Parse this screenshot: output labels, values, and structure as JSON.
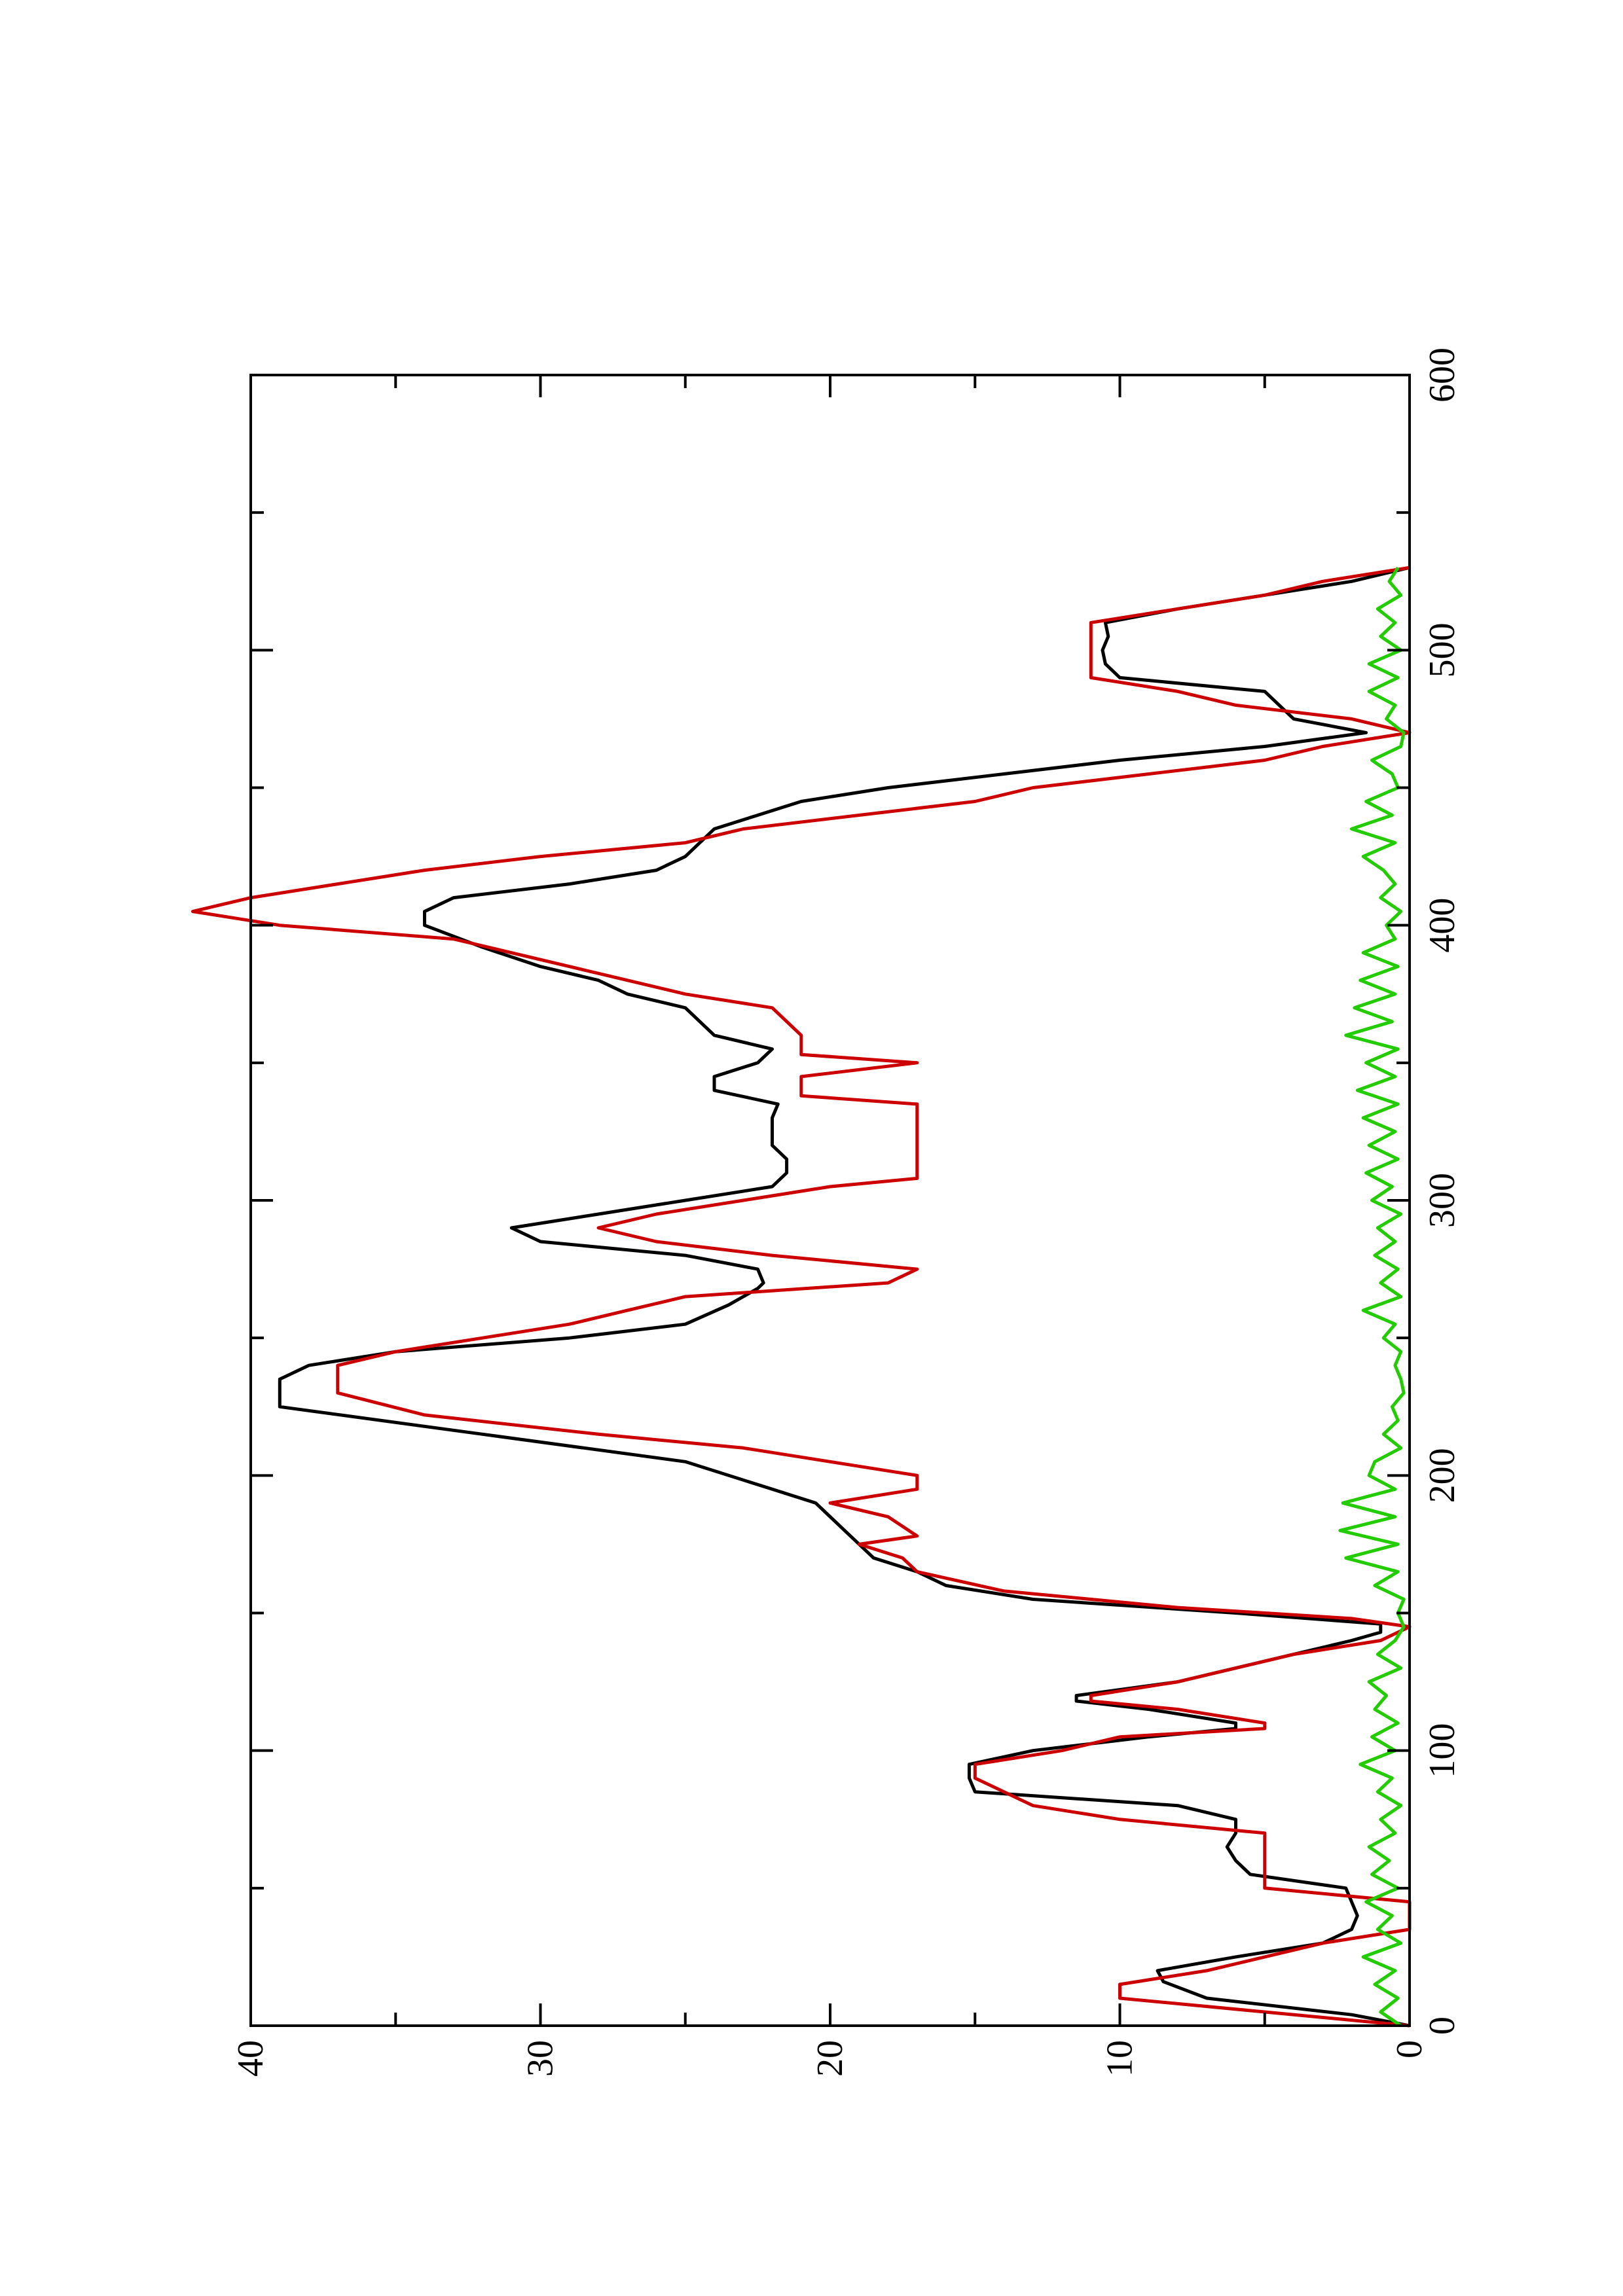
{
  "chart_data": {
    "type": "line",
    "orientation": "rotated-90",
    "title": "",
    "xlabel": "",
    "ylabel": "",
    "xlim": [
      0,
      600
    ],
    "ylim": [
      0,
      40
    ],
    "x_ticks": [
      "0",
      "100",
      "200",
      "300",
      "400",
      "500",
      "600"
    ],
    "y_ticks": [
      "0",
      "10",
      "20",
      "30",
      "40"
    ],
    "grid": false,
    "legend": "none",
    "series": [
      {
        "color": "#000000",
        "points": [
          [
            0,
            0
          ],
          [
            4,
            2
          ],
          [
            10,
            7
          ],
          [
            16,
            8.5
          ],
          [
            20,
            8.7
          ],
          [
            25,
            6
          ],
          [
            30,
            3
          ],
          [
            35,
            2
          ],
          [
            40,
            1.8
          ],
          [
            45,
            2
          ],
          [
            50,
            2.2
          ],
          [
            55,
            5.5
          ],
          [
            60,
            6
          ],
          [
            65,
            6.3
          ],
          [
            70,
            6
          ],
          [
            75,
            6
          ],
          [
            80,
            8
          ],
          [
            85,
            15
          ],
          [
            90,
            15.2
          ],
          [
            95,
            15.2
          ],
          [
            100,
            13
          ],
          [
            105,
            9
          ],
          [
            108,
            6
          ],
          [
            110,
            6
          ],
          [
            115,
            9
          ],
          [
            118,
            11.5
          ],
          [
            120,
            11.5
          ],
          [
            125,
            8
          ],
          [
            130,
            6
          ],
          [
            135,
            4
          ],
          [
            140,
            2
          ],
          [
            143,
            1
          ],
          [
            146,
            1
          ],
          [
            150,
            6
          ],
          [
            155,
            13
          ],
          [
            160,
            16
          ],
          [
            165,
            17
          ],
          [
            170,
            18.5
          ],
          [
            175,
            19
          ],
          [
            180,
            19.5
          ],
          [
            190,
            20.5
          ],
          [
            195,
            22
          ],
          [
            205,
            25
          ],
          [
            215,
            32
          ],
          [
            225,
            39
          ],
          [
            235,
            39
          ],
          [
            240,
            38
          ],
          [
            245,
            35
          ],
          [
            250,
            29
          ],
          [
            255,
            25
          ],
          [
            262,
            23.5
          ],
          [
            268,
            22.5
          ],
          [
            270,
            22.3
          ],
          [
            275,
            22.5
          ],
          [
            280,
            25
          ],
          [
            285,
            30
          ],
          [
            290,
            31
          ],
          [
            295,
            28
          ],
          [
            300,
            25
          ],
          [
            305,
            22
          ],
          [
            310,
            21.5
          ],
          [
            315,
            21.5
          ],
          [
            320,
            22
          ],
          [
            325,
            22
          ],
          [
            330,
            22
          ],
          [
            335,
            21.8
          ],
          [
            340,
            24
          ],
          [
            345,
            24
          ],
          [
            350,
            22.5
          ],
          [
            355,
            22
          ],
          [
            360,
            24
          ],
          [
            370,
            25
          ],
          [
            375,
            27
          ],
          [
            380,
            28
          ],
          [
            385,
            30
          ],
          [
            392,
            32
          ],
          [
            400,
            34
          ],
          [
            405,
            34
          ],
          [
            410,
            33
          ],
          [
            415,
            29
          ],
          [
            420,
            26
          ],
          [
            425,
            25
          ],
          [
            430,
            24.5
          ],
          [
            435,
            24
          ],
          [
            440,
            22.5
          ],
          [
            445,
            21
          ],
          [
            450,
            18
          ],
          [
            455,
            14
          ],
          [
            460,
            10
          ],
          [
            465,
            5
          ],
          [
            470,
            1.5
          ],
          [
            475,
            4
          ],
          [
            480,
            4.5
          ],
          [
            485,
            5
          ],
          [
            490,
            10
          ],
          [
            495,
            10.5
          ],
          [
            500,
            10.6
          ],
          [
            505,
            10.4
          ],
          [
            510,
            10.5
          ],
          [
            515,
            8
          ],
          [
            520,
            5
          ],
          [
            525,
            2
          ],
          [
            530,
            0
          ]
        ]
      },
      {
        "color": "#cc0000",
        "points": [
          [
            0,
            0
          ],
          [
            5,
            5
          ],
          [
            10,
            10
          ],
          [
            15,
            10
          ],
          [
            20,
            7
          ],
          [
            25,
            5
          ],
          [
            30,
            3
          ],
          [
            35,
            0
          ],
          [
            40,
            0
          ],
          [
            45,
            0
          ],
          [
            50,
            5
          ],
          [
            60,
            5
          ],
          [
            70,
            5
          ],
          [
            75,
            10
          ],
          [
            80,
            13
          ],
          [
            85,
            14
          ],
          [
            90,
            15
          ],
          [
            95,
            15
          ],
          [
            100,
            12
          ],
          [
            105,
            10
          ],
          [
            108,
            5
          ],
          [
            110,
            5
          ],
          [
            115,
            8
          ],
          [
            118,
            11
          ],
          [
            120,
            11
          ],
          [
            125,
            8
          ],
          [
            130,
            6
          ],
          [
            135,
            4
          ],
          [
            140,
            1
          ],
          [
            145,
            0
          ],
          [
            148,
            2
          ],
          [
            152,
            8
          ],
          [
            158,
            14
          ],
          [
            165,
            17
          ],
          [
            170,
            17.5
          ],
          [
            175,
            19
          ],
          [
            178,
            17
          ],
          [
            185,
            18
          ],
          [
            190,
            20
          ],
          [
            195,
            17
          ],
          [
            200,
            17
          ],
          [
            205,
            20
          ],
          [
            210,
            23
          ],
          [
            215,
            28
          ],
          [
            222,
            34
          ],
          [
            230,
            37
          ],
          [
            240,
            37
          ],
          [
            245,
            35
          ],
          [
            250,
            32
          ],
          [
            255,
            29
          ],
          [
            260,
            27
          ],
          [
            265,
            25
          ],
          [
            270,
            18
          ],
          [
            275,
            17
          ],
          [
            280,
            22
          ],
          [
            285,
            26
          ],
          [
            290,
            28
          ],
          [
            295,
            26
          ],
          [
            300,
            23
          ],
          [
            305,
            20
          ],
          [
            308,
            17
          ],
          [
            315,
            17
          ],
          [
            325,
            17
          ],
          [
            335,
            17
          ],
          [
            338,
            21
          ],
          [
            345,
            21
          ],
          [
            350,
            17
          ],
          [
            353,
            21
          ],
          [
            360,
            21
          ],
          [
            370,
            22
          ],
          [
            375,
            25
          ],
          [
            385,
            29
          ],
          [
            395,
            33
          ],
          [
            400,
            39
          ],
          [
            405,
            42
          ],
          [
            410,
            40
          ],
          [
            415,
            37
          ],
          [
            420,
            34
          ],
          [
            425,
            30
          ],
          [
            430,
            25
          ],
          [
            435,
            23
          ],
          [
            440,
            19
          ],
          [
            445,
            15
          ],
          [
            450,
            13
          ],
          [
            455,
            9
          ],
          [
            460,
            5
          ],
          [
            465,
            3
          ],
          [
            470,
            0
          ],
          [
            475,
            2
          ],
          [
            480,
            6
          ],
          [
            485,
            8
          ],
          [
            490,
            11
          ],
          [
            500,
            11
          ],
          [
            510,
            11
          ],
          [
            515,
            8
          ],
          [
            520,
            5
          ],
          [
            525,
            3
          ],
          [
            530,
            0
          ]
        ]
      },
      {
        "color": "#22cc00",
        "points": [
          [
            0,
            0.3
          ],
          [
            5,
            1
          ],
          [
            10,
            0.4
          ],
          [
            15,
            1.2
          ],
          [
            20,
            0.5
          ],
          [
            25,
            1.6
          ],
          [
            30,
            0.3
          ],
          [
            35,
            1.1
          ],
          [
            40,
            0.6
          ],
          [
            45,
            1.5
          ],
          [
            50,
            0.4
          ],
          [
            55,
            1.3
          ],
          [
            60,
            0.7
          ],
          [
            65,
            1.4
          ],
          [
            70,
            0.5
          ],
          [
            75,
            1
          ],
          [
            80,
            0.3
          ],
          [
            85,
            1.1
          ],
          [
            90,
            0.6
          ],
          [
            95,
            1.7
          ],
          [
            100,
            0.5
          ],
          [
            105,
            1.3
          ],
          [
            110,
            0.4
          ],
          [
            115,
            1.2
          ],
          [
            120,
            0.8
          ],
          [
            125,
            1.4
          ],
          [
            130,
            0.3
          ],
          [
            135,
            1.1
          ],
          [
            140,
            0.5
          ],
          [
            145,
            0.2
          ],
          [
            150,
            0.4
          ],
          [
            155,
            0.2
          ],
          [
            160,
            1.2
          ],
          [
            165,
            0.4
          ],
          [
            170,
            2.2
          ],
          [
            175,
            0.4
          ],
          [
            180,
            2.4
          ],
          [
            185,
            0.5
          ],
          [
            190,
            2.3
          ],
          [
            195,
            0.5
          ],
          [
            200,
            1.4
          ],
          [
            205,
            1.2
          ],
          [
            210,
            0.3
          ],
          [
            215,
            0.9
          ],
          [
            220,
            0.4
          ],
          [
            225,
            0.6
          ],
          [
            230,
            0.2
          ],
          [
            235,
            0.3
          ],
          [
            240,
            0.5
          ],
          [
            245,
            0.3
          ],
          [
            250,
            0.9
          ],
          [
            255,
            0.5
          ],
          [
            260,
            1.6
          ],
          [
            265,
            0.3
          ],
          [
            270,
            1
          ],
          [
            275,
            0.4
          ],
          [
            280,
            1.2
          ],
          [
            285,
            0.5
          ],
          [
            290,
            1.1
          ],
          [
            295,
            0.3
          ],
          [
            300,
            1.3
          ],
          [
            305,
            0.6
          ],
          [
            310,
            1.5
          ],
          [
            315,
            0.4
          ],
          [
            320,
            1.4
          ],
          [
            325,
            0.5
          ],
          [
            330,
            1.6
          ],
          [
            335,
            0.4
          ],
          [
            340,
            1.8
          ],
          [
            345,
            0.5
          ],
          [
            350,
            1.5
          ],
          [
            355,
            0.4
          ],
          [
            360,
            2.2
          ],
          [
            365,
            0.6
          ],
          [
            370,
            1.9
          ],
          [
            375,
            0.5
          ],
          [
            380,
            1.7
          ],
          [
            385,
            0.4
          ],
          [
            390,
            1.6
          ],
          [
            395,
            0.5
          ],
          [
            400,
            0.8
          ],
          [
            405,
            0.3
          ],
          [
            410,
            1
          ],
          [
            415,
            0.5
          ],
          [
            420,
            0.9
          ],
          [
            425,
            1.6
          ],
          [
            430,
            0.5
          ],
          [
            435,
            2
          ],
          [
            440,
            0.6
          ],
          [
            445,
            1.5
          ],
          [
            450,
            0.4
          ],
          [
            455,
            0.6
          ],
          [
            460,
            1.3
          ],
          [
            465,
            0.3
          ],
          [
            470,
            0.2
          ],
          [
            475,
            0.8
          ],
          [
            480,
            0.5
          ],
          [
            485,
            1.4
          ],
          [
            490,
            0.4
          ],
          [
            495,
            1.4
          ],
          [
            500,
            0.3
          ],
          [
            505,
            1
          ],
          [
            510,
            0.5
          ],
          [
            515,
            1.1
          ],
          [
            520,
            0.3
          ],
          [
            525,
            0.7
          ],
          [
            530,
            0.4
          ]
        ]
      }
    ]
  }
}
